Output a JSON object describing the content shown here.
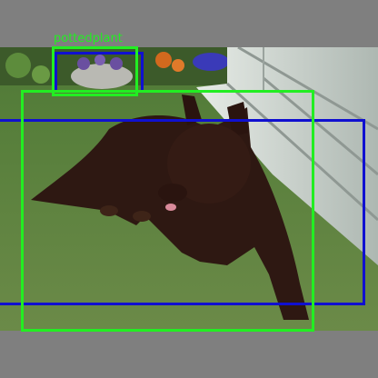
{
  "image": {
    "description_icon": "photo-dog-on-lawn"
  },
  "detections": [
    {
      "id": "pottedplant-1",
      "label": "pottedplant",
      "color": "#22ee22",
      "label_visible": true
    },
    {
      "id": "dog-1",
      "label": "dog",
      "color": "#22ee22",
      "label_visible": false
    },
    {
      "id": "blue-1",
      "label": "",
      "color": "#1010d0",
      "label_visible": false
    },
    {
      "id": "blue-2",
      "label": "",
      "color": "#1010d0",
      "label_visible": false
    }
  ],
  "colors": {
    "letterbox": "#7f7f7f",
    "grass": "#5b7d3c",
    "deck": "#d6dcd6",
    "dog": "#2e1812"
  }
}
